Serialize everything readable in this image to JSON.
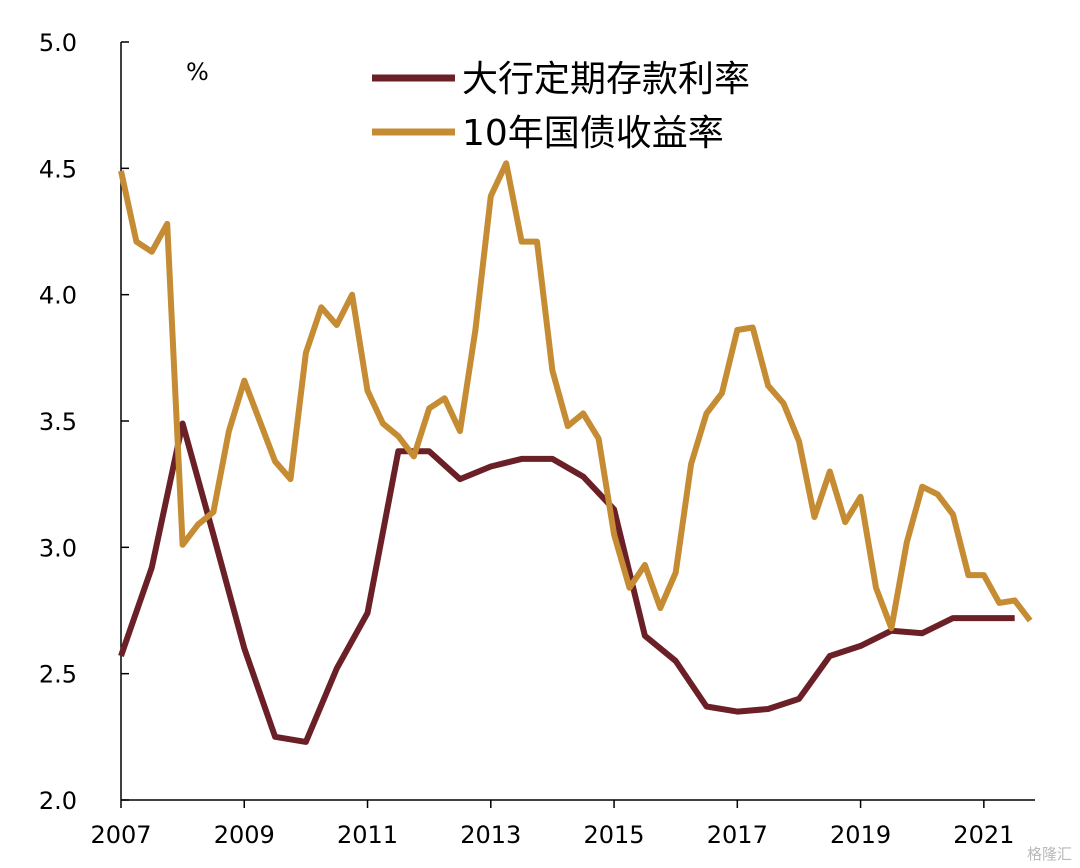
{
  "chart_data": {
    "type": "line",
    "unit": "%",
    "xlim": [
      2007.0,
      2021.83
    ],
    "ylim": [
      2.0,
      5.0
    ],
    "xticks": [
      "2007",
      "2009",
      "2011",
      "2013",
      "2015",
      "2017",
      "2019",
      "2021"
    ],
    "yticks": [
      "2.0",
      "2.5",
      "3.0",
      "3.5",
      "4.0",
      "4.5",
      "5.0"
    ],
    "legend_position": "top-center",
    "grid": false,
    "series": [
      {
        "name": "大行定期存款利率",
        "color": "#6b2027",
        "points": [
          [
            2007.0,
            2.57
          ],
          [
            2007.5,
            2.92
          ],
          [
            2008.0,
            3.49
          ],
          [
            2008.5,
            3.05
          ],
          [
            2009.0,
            2.6
          ],
          [
            2009.5,
            2.25
          ],
          [
            2010.0,
            2.23
          ],
          [
            2010.5,
            2.52
          ],
          [
            2011.0,
            2.74
          ],
          [
            2011.5,
            3.38
          ],
          [
            2012.0,
            3.38
          ],
          [
            2012.5,
            3.27
          ],
          [
            2013.0,
            3.32
          ],
          [
            2013.5,
            3.35
          ],
          [
            2014.0,
            3.35
          ],
          [
            2014.5,
            3.28
          ],
          [
            2015.0,
            3.15
          ],
          [
            2015.5,
            2.65
          ],
          [
            2016.0,
            2.55
          ],
          [
            2016.5,
            2.37
          ],
          [
            2017.0,
            2.35
          ],
          [
            2017.5,
            2.36
          ],
          [
            2018.0,
            2.4
          ],
          [
            2018.5,
            2.57
          ],
          [
            2019.0,
            2.61
          ],
          [
            2019.5,
            2.67
          ],
          [
            2020.0,
            2.66
          ],
          [
            2020.5,
            2.72
          ],
          [
            2021.0,
            2.72
          ],
          [
            2021.5,
            2.72
          ]
        ]
      },
      {
        "name": "10年国债收益率",
        "color": "#c58c34",
        "points": [
          [
            2007.0,
            4.49
          ],
          [
            2007.25,
            4.21
          ],
          [
            2007.5,
            4.17
          ],
          [
            2007.75,
            4.28
          ],
          [
            2008.0,
            3.01
          ],
          [
            2008.25,
            3.09
          ],
          [
            2008.5,
            3.14
          ],
          [
            2008.75,
            3.46
          ],
          [
            2009.0,
            3.66
          ],
          [
            2009.25,
            3.5
          ],
          [
            2009.5,
            3.34
          ],
          [
            2009.75,
            3.27
          ],
          [
            2010.0,
            3.77
          ],
          [
            2010.25,
            3.95
          ],
          [
            2010.5,
            3.88
          ],
          [
            2010.75,
            4.0
          ],
          [
            2011.0,
            3.62
          ],
          [
            2011.25,
            3.49
          ],
          [
            2011.5,
            3.44
          ],
          [
            2011.75,
            3.36
          ],
          [
            2012.0,
            3.55
          ],
          [
            2012.25,
            3.59
          ],
          [
            2012.5,
            3.46
          ],
          [
            2012.75,
            3.86
          ],
          [
            2013.0,
            4.39
          ],
          [
            2013.25,
            4.52
          ],
          [
            2013.5,
            4.21
          ],
          [
            2013.75,
            4.21
          ],
          [
            2014.0,
            3.7
          ],
          [
            2014.25,
            3.48
          ],
          [
            2014.5,
            3.53
          ],
          [
            2014.75,
            3.43
          ],
          [
            2015.0,
            3.05
          ],
          [
            2015.25,
            2.84
          ],
          [
            2015.5,
            2.93
          ],
          [
            2015.75,
            2.76
          ],
          [
            2016.0,
            2.9
          ],
          [
            2016.25,
            3.33
          ],
          [
            2016.5,
            3.53
          ],
          [
            2016.75,
            3.61
          ],
          [
            2017.0,
            3.86
          ],
          [
            2017.25,
            3.87
          ],
          [
            2017.5,
            3.64
          ],
          [
            2017.75,
            3.57
          ],
          [
            2018.0,
            3.42
          ],
          [
            2018.25,
            3.12
          ],
          [
            2018.5,
            3.3
          ],
          [
            2018.75,
            3.1
          ],
          [
            2019.0,
            3.2
          ],
          [
            2019.25,
            2.84
          ],
          [
            2019.5,
            2.68
          ],
          [
            2019.75,
            3.02
          ],
          [
            2020.0,
            3.24
          ],
          [
            2020.25,
            3.21
          ],
          [
            2020.5,
            3.13
          ],
          [
            2020.75,
            2.89
          ],
          [
            2021.0,
            2.89
          ],
          [
            2021.25,
            2.78
          ],
          [
            2021.5,
            2.79
          ],
          [
            2021.75,
            2.71
          ]
        ]
      }
    ]
  },
  "watermark": "格隆汇"
}
